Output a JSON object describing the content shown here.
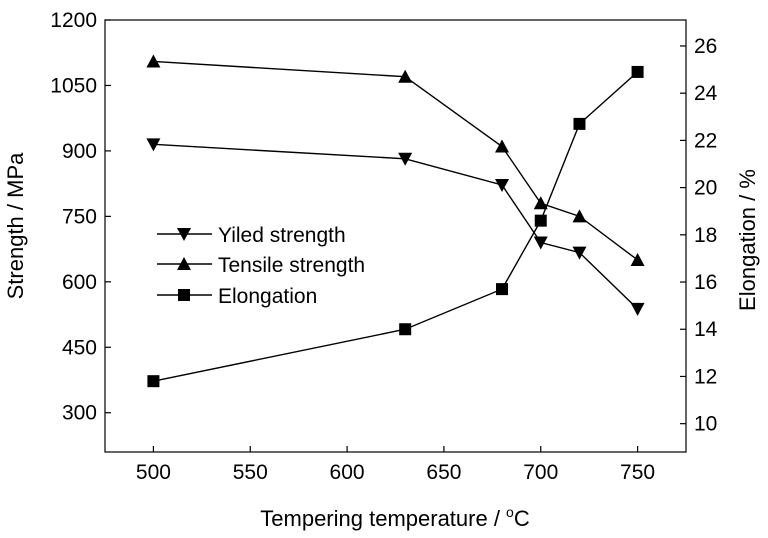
{
  "chart_data": {
    "type": "line",
    "xlabel": "Tempering temperature / ",
    "xlabel_unit": "C",
    "xlabel_unit_sup": "o",
    "ylabel_left": "Strength / MPa",
    "ylabel_right": "Elongation / %",
    "xlim": [
      475,
      775
    ],
    "ylim_left": [
      210,
      1200
    ],
    "ylim_right": [
      8.8,
      27.1
    ],
    "xticks": [
      500,
      550,
      600,
      650,
      700,
      750
    ],
    "yticks_left": [
      300,
      450,
      600,
      750,
      900,
      1050,
      1200
    ],
    "yticks_right": [
      10,
      12,
      14,
      16,
      18,
      20,
      22,
      24,
      26
    ],
    "grid": false,
    "legend_position": "center-left",
    "series": [
      {
        "name": "Yiled strength",
        "axis": "left",
        "marker": "triangle-down",
        "x": [
          500,
          630,
          680,
          700,
          720,
          750
        ],
        "y": [
          915,
          882,
          822,
          690,
          667,
          538
        ]
      },
      {
        "name": "Tensile strength",
        "axis": "left",
        "marker": "triangle-up",
        "x": [
          500,
          630,
          680,
          700,
          720,
          750
        ],
        "y": [
          1105,
          1070,
          910,
          780,
          750,
          650
        ]
      },
      {
        "name": "Elongation",
        "axis": "right",
        "marker": "square",
        "x": [
          500,
          630,
          680,
          700,
          720,
          750
        ],
        "y": [
          11.8,
          14.0,
          15.7,
          18.6,
          22.7,
          24.9
        ]
      }
    ]
  }
}
